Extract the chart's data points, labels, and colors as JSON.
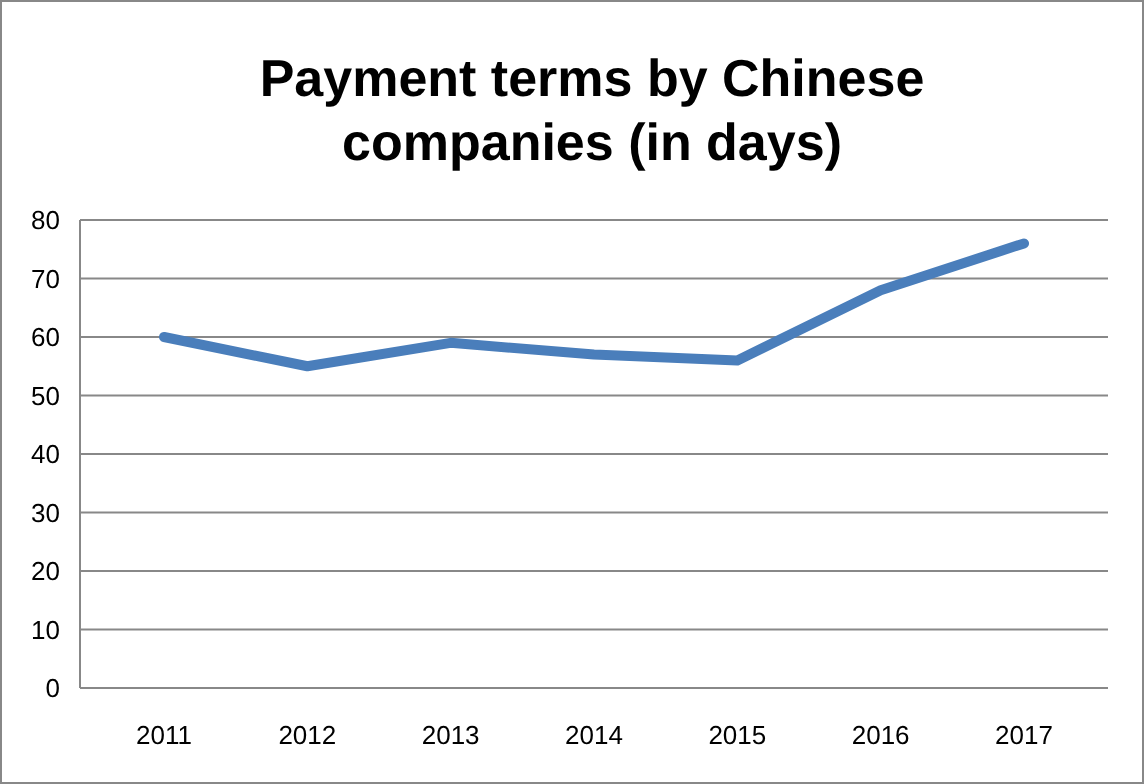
{
  "chart_data": {
    "type": "line",
    "title": "Payment terms by Chinese companies (in days)",
    "categories": [
      "2011",
      "2012",
      "2013",
      "2014",
      "2015",
      "2016",
      "2017"
    ],
    "series": [
      {
        "color": "#4a7ebb",
        "values": [
          60,
          55,
          59,
          57,
          56,
          68,
          76
        ]
      }
    ],
    "ylim": [
      0,
      80
    ],
    "yticks": [
      0,
      10,
      20,
      30,
      40,
      50,
      60,
      70,
      80
    ],
    "grid": "y",
    "marker": "none",
    "line_style": "solid"
  }
}
